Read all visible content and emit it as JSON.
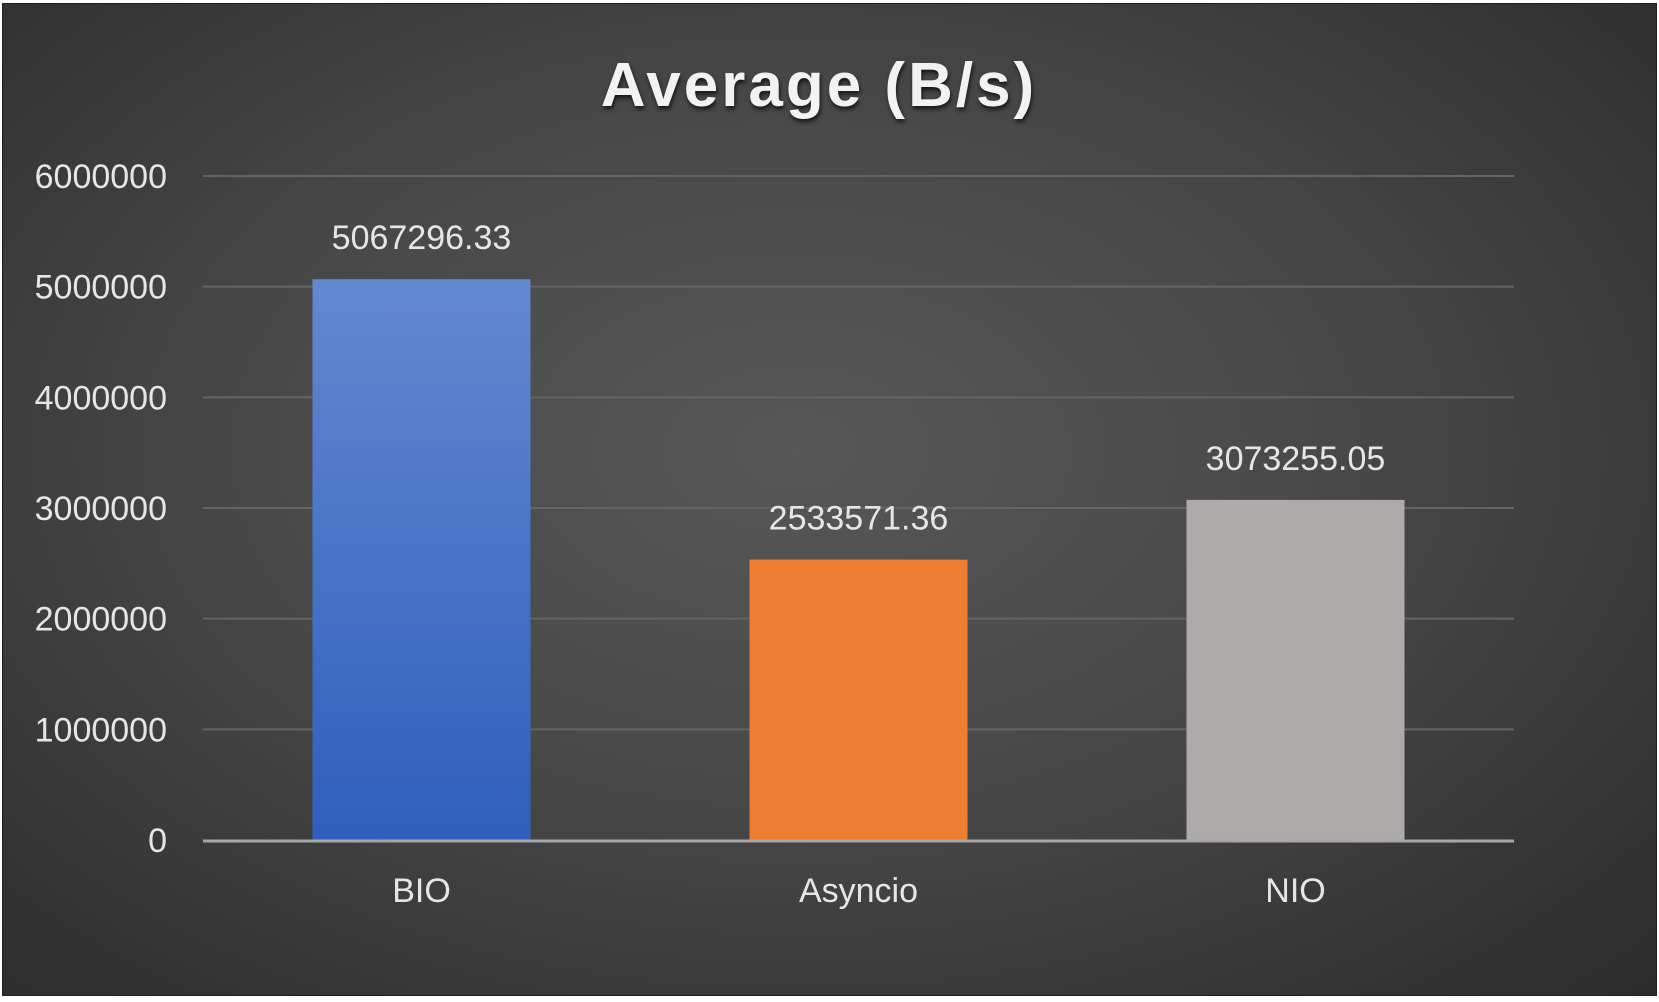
{
  "chart_data": {
    "type": "bar",
    "title": "Average (B/s)",
    "categories": [
      "BIO",
      "Asyncio",
      "NIO"
    ],
    "values": [
      5067296.33,
      2533571.36,
      3073255.05
    ],
    "data_labels": [
      "5067296.33",
      "2533571.36",
      "3073255.05"
    ],
    "xlabel": "",
    "ylabel": "",
    "ylim": [
      0,
      6000000
    ],
    "yticks": [
      0,
      1000000,
      2000000,
      3000000,
      4000000,
      5000000,
      6000000
    ],
    "ytick_labels": [
      "0",
      "1000000",
      "2000000",
      "3000000",
      "4000000",
      "5000000",
      "6000000"
    ],
    "grid": true,
    "legend": "none",
    "colors": {
      "background": "#484848",
      "gridline": "#646464",
      "axis_line": "#a6a6a6",
      "text": "#e6e6e6",
      "title": "#f2f2f2",
      "bar_colors": [
        {
          "top": "#6289d0",
          "bottom": "#2f5fbc"
        },
        {
          "top": "#ed7d31",
          "bottom": "#ed7d31"
        },
        {
          "top": "#aeaaa9",
          "bottom": "#aeaaa9"
        }
      ]
    }
  }
}
